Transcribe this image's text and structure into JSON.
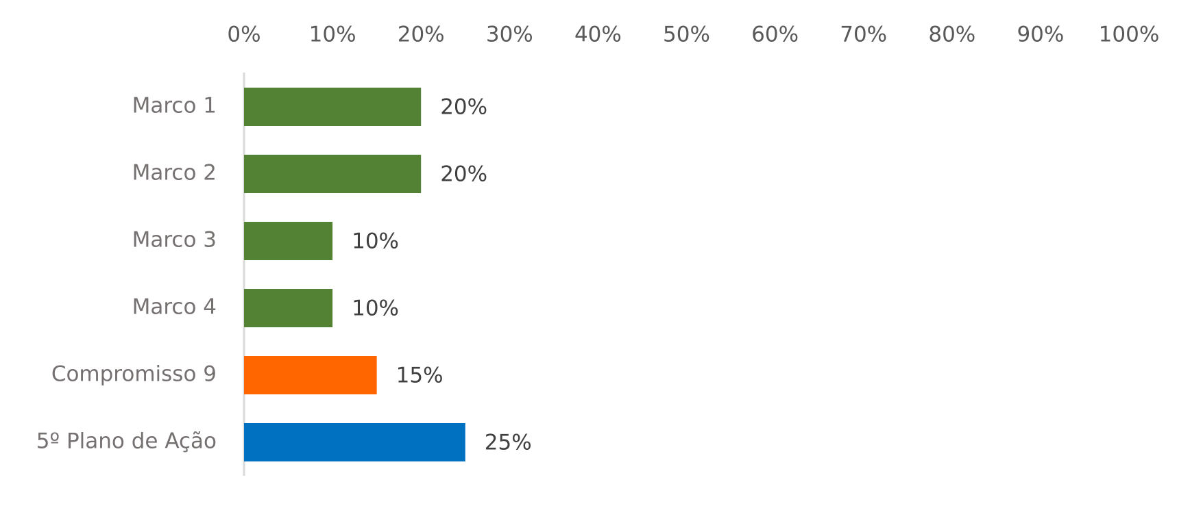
{
  "chart_data": {
    "type": "bar",
    "orientation": "horizontal",
    "categories": [
      "Marco 1",
      "Marco 2",
      "Marco 3",
      "Marco 4",
      "Compromisso 9",
      "5º Plano de Ação"
    ],
    "values": [
      20,
      20,
      10,
      10,
      15,
      25
    ],
    "value_labels": [
      "20%",
      "20%",
      "10%",
      "10%",
      "15%",
      "25%"
    ],
    "colors": [
      "#548235",
      "#548235",
      "#548235",
      "#548235",
      "#ff6600",
      "#0070c0"
    ],
    "xlim": [
      0,
      100
    ],
    "xticks": [
      {
        "value": 0,
        "label": "0%"
      },
      {
        "value": 10,
        "label": "10%"
      },
      {
        "value": 20,
        "label": "20%"
      },
      {
        "value": 30,
        "label": "30%"
      },
      {
        "value": 40,
        "label": "40%"
      },
      {
        "value": 50,
        "label": "50%"
      },
      {
        "value": 60,
        "label": "60%"
      },
      {
        "value": 70,
        "label": "70%"
      },
      {
        "value": 80,
        "label": "80%"
      },
      {
        "value": 90,
        "label": "90%"
      },
      {
        "value": 100,
        "label": "100%"
      }
    ],
    "xaxis_position": "top",
    "grid": false
  }
}
